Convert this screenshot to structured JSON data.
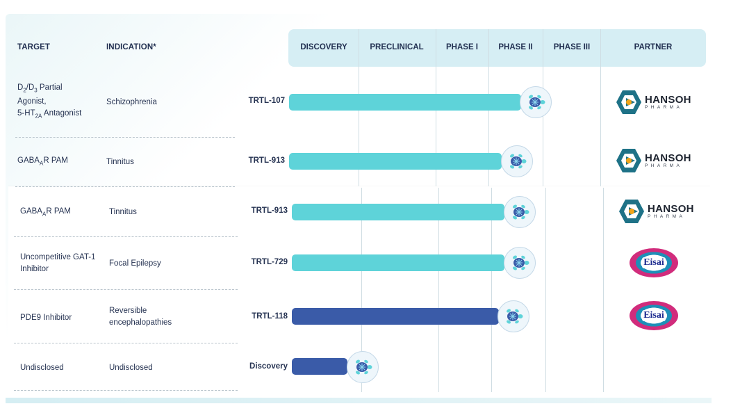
{
  "headers": {
    "target": "TARGET",
    "indication": "INDICATION*",
    "phases": [
      "DISCOVERY",
      "PRECLINICAL",
      "PHASE I",
      "PHASE II",
      "PHASE III"
    ],
    "partner": "PARTNER"
  },
  "rows": [
    {
      "target_lines": [
        "Partial",
        "Agonist,",
        "Antagonist"
      ],
      "target_d2": "D",
      "target_sub2": "2",
      "target_slash": "/D",
      "target_sub3": "3",
      "target_5ht": "5-HT",
      "target_sub2a": "2A",
      "indication": "Schizophrenia",
      "program": "TRTL-107",
      "progress_stage": "PHASE II",
      "progress_fraction": 0.55,
      "bar_color": "#5ed3d9",
      "partner": {
        "name": "HANSOH",
        "sub": "PHARMA"
      }
    },
    {
      "target_main": "GABA",
      "target_sub": "A",
      "target_rest": "R PAM",
      "indication": "Tinnitus",
      "program": "TRTL-913",
      "progress_stage": "PHASE II",
      "progress_fraction": 0.2,
      "bar_color": "#5ed3d9",
      "partner": {
        "name": "HANSOH",
        "sub": "PHARMA"
      }
    },
    {
      "target_main": "GABA",
      "target_sub": "A",
      "target_rest": "R PAM",
      "indication": "Tinnitus",
      "program": "TRTL-913",
      "progress_stage": "PHASE II",
      "progress_fraction": 0.2,
      "bar_color": "#5ed3d9",
      "partner": {
        "name": "HANSOH",
        "sub": "PHARMA"
      }
    },
    {
      "target_l1": "Uncompetitive GAT-1",
      "target_l2": "Inhibitor",
      "indication": "Focal Epilepsy",
      "program": "TRTL-729",
      "progress_stage": "PHASE II",
      "progress_fraction": 0.2,
      "bar_color": "#5ed3d9",
      "partner": {
        "name": "Eisai"
      }
    },
    {
      "target": "PDE9 Inhibitor",
      "indication_l1": "Reversible",
      "indication_l2": "encephalopathies",
      "program": "TRTL-118",
      "progress_stage": "PHASE II",
      "progress_fraction": 0.15,
      "bar_color": "#3a5ba8",
      "partner": {
        "name": "Eisai"
      }
    },
    {
      "target": "Undisclosed",
      "indication": "Undisclosed",
      "program": "Discovery",
      "progress_stage": "DISCOVERY",
      "progress_fraction": 0.8,
      "bar_color": "#3a5ba8"
    }
  ],
  "icons": {
    "marker": "turtle-icon",
    "hansoh_logo": "hansoh-logo-icon",
    "eisai_logo": "eisai-logo-icon"
  },
  "colors": {
    "header_band": "#d6eef4",
    "teal_bar": "#5ed3d9",
    "blue_bar": "#3a5ba8",
    "text": "#233152"
  }
}
